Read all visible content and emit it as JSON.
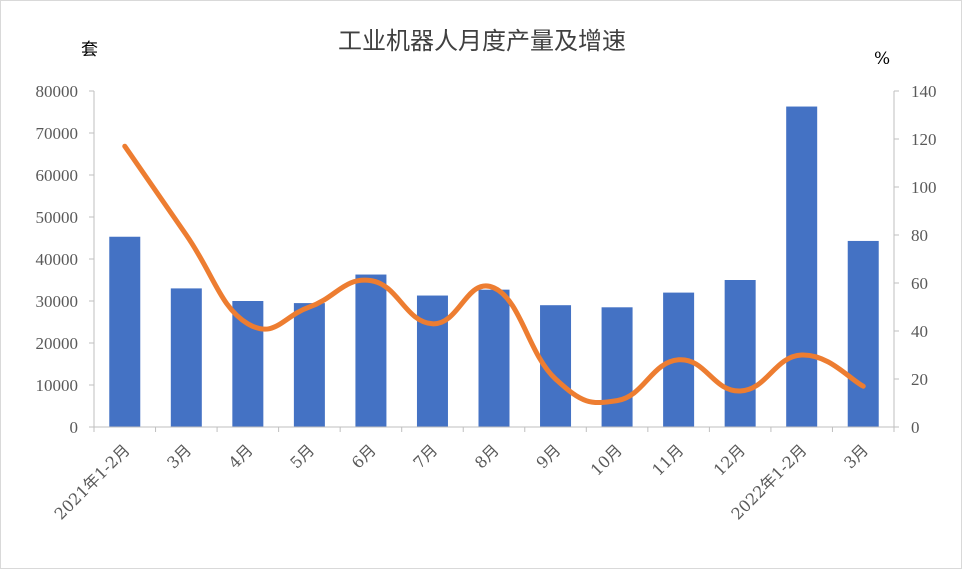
{
  "chart_data": {
    "type": "bar",
    "title": "工业机器人月度产量及增速",
    "left_unit": "套",
    "right_unit": "%",
    "categories": [
      "2021年1-2月",
      "3月",
      "4月",
      "5月",
      "6月",
      "7月",
      "8月",
      "9月",
      "10月",
      "11月",
      "12月",
      "2022年1-2月",
      "3月"
    ],
    "series": [
      {
        "type": "bar",
        "axis": "left",
        "color": "#4472C4",
        "values": [
          45300,
          33000,
          30000,
          29500,
          36300,
          31300,
          32700,
          29000,
          28500,
          32000,
          35000,
          76300,
          44300
        ]
      },
      {
        "type": "line",
        "axis": "right",
        "color": "#ED7D31",
        "values": [
          117,
          80,
          43,
          50,
          61,
          43,
          58,
          20,
          11,
          28,
          15,
          30,
          17
        ]
      }
    ],
    "ylim_left": [
      0,
      80000
    ],
    "yticks_left": [
      "0",
      "10000",
      "20000",
      "30000",
      "40000",
      "50000",
      "60000",
      "70000",
      "80000"
    ],
    "ylim_right": [
      0,
      140
    ],
    "yticks_right": [
      "0",
      "20",
      "40",
      "60",
      "80",
      "100",
      "120",
      "140"
    ],
    "grid": false,
    "legend": "none"
  }
}
